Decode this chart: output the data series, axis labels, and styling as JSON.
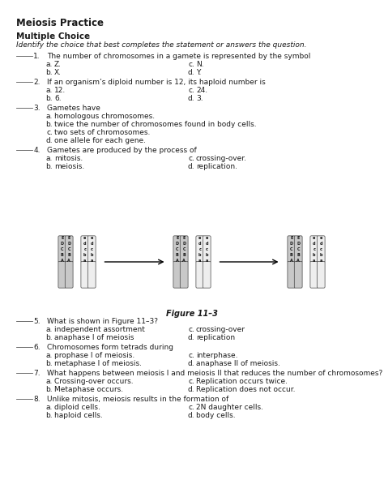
{
  "title": "Meiosis Practice",
  "section": "Multiple Choice",
  "instruction": "Identify the choice that best completes the statement or answers the question.",
  "questions": [
    {
      "num": "1.",
      "text": "The number of chromosomes in a gamete is represented by the symbol",
      "choices_2col": [
        [
          "a.",
          "Z.",
          "c.",
          "N."
        ],
        [
          "b.",
          "X.",
          "d.",
          "Y."
        ]
      ]
    },
    {
      "num": "2.",
      "text": "If an organism’s diploid number is 12, its haploid number is",
      "choices_2col": [
        [
          "a.",
          "12.",
          "c.",
          "24."
        ],
        [
          "b.",
          "6.",
          "d.",
          "3."
        ]
      ]
    },
    {
      "num": "3.",
      "text": "Gametes have",
      "choices_1col": [
        [
          "a.",
          "homologous chromosomes."
        ],
        [
          "b.",
          "twice the number of chromosomes found in body cells."
        ],
        [
          "c.",
          "two sets of chromosomes."
        ],
        [
          "d.",
          "one allele for each gene."
        ]
      ]
    },
    {
      "num": "4.",
      "text": "Gametes are produced by the process of",
      "choices_2col": [
        [
          "a.",
          "mitosis.",
          "c.",
          "crossing-over."
        ],
        [
          "b.",
          "meiosis.",
          "d.",
          "replication."
        ]
      ]
    },
    {
      "num": "5.",
      "text": "What is shown in Figure 11–3?",
      "choices_2col": [
        [
          "a.",
          "independent assortment",
          "c.",
          "crossing-over"
        ],
        [
          "b.",
          "anaphase I of meiosis",
          "d.",
          "replication"
        ]
      ]
    },
    {
      "num": "6.",
      "text": "Chromosomes form tetrads during",
      "choices_2col": [
        [
          "a.",
          "prophase I of meiosis.",
          "c.",
          "interphase."
        ],
        [
          "b.",
          "metaphase I of meiosis.",
          "d.",
          "anaphase II of meiosis."
        ]
      ]
    },
    {
      "num": "7.",
      "text": "What happens between meiosis I and meiosis II that reduces the number of chromosomes?",
      "choices_2col": [
        [
          "a.",
          "Crossing-over occurs.",
          "c.",
          "Replication occurs twice."
        ],
        [
          "b.",
          "Metaphase occurs.",
          "d.",
          "Replication does not occur."
        ]
      ]
    },
    {
      "num": "8.",
      "text": "Unlike mitosis, meiosis results in the formation of",
      "choices_2col": [
        [
          "a.",
          "diploid cells.",
          "c.",
          "2N daughter cells."
        ],
        [
          "b.",
          "haploid cells.",
          "d.",
          "body cells."
        ]
      ]
    }
  ],
  "figure_caption": "Figure 11–3",
  "bg_color": "#ffffff",
  "text_color": "#1a1a1a",
  "font_size_title": 8.5,
  "font_size_section": 7.5,
  "font_size_body": 6.5
}
